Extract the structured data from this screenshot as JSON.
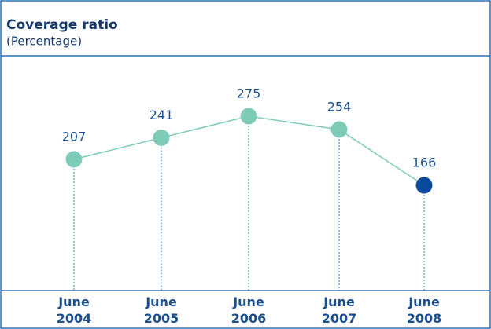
{
  "chart_data": {
    "type": "line",
    "title": "Coverage ratio",
    "subtitle": "(Percentage)",
    "categories": [
      "June 2004",
      "June 2005",
      "June 2006",
      "June 2007",
      "June 2008"
    ],
    "series": [
      {
        "color": "#7ecbb7",
        "values": [
          207,
          241,
          275,
          254,
          166
        ],
        "point_colors": [
          "#7ecbb7",
          "#7ecbb7",
          "#7ecbb7",
          "#7ecbb7",
          "#0a4a9a"
        ]
      }
    ]
  }
}
